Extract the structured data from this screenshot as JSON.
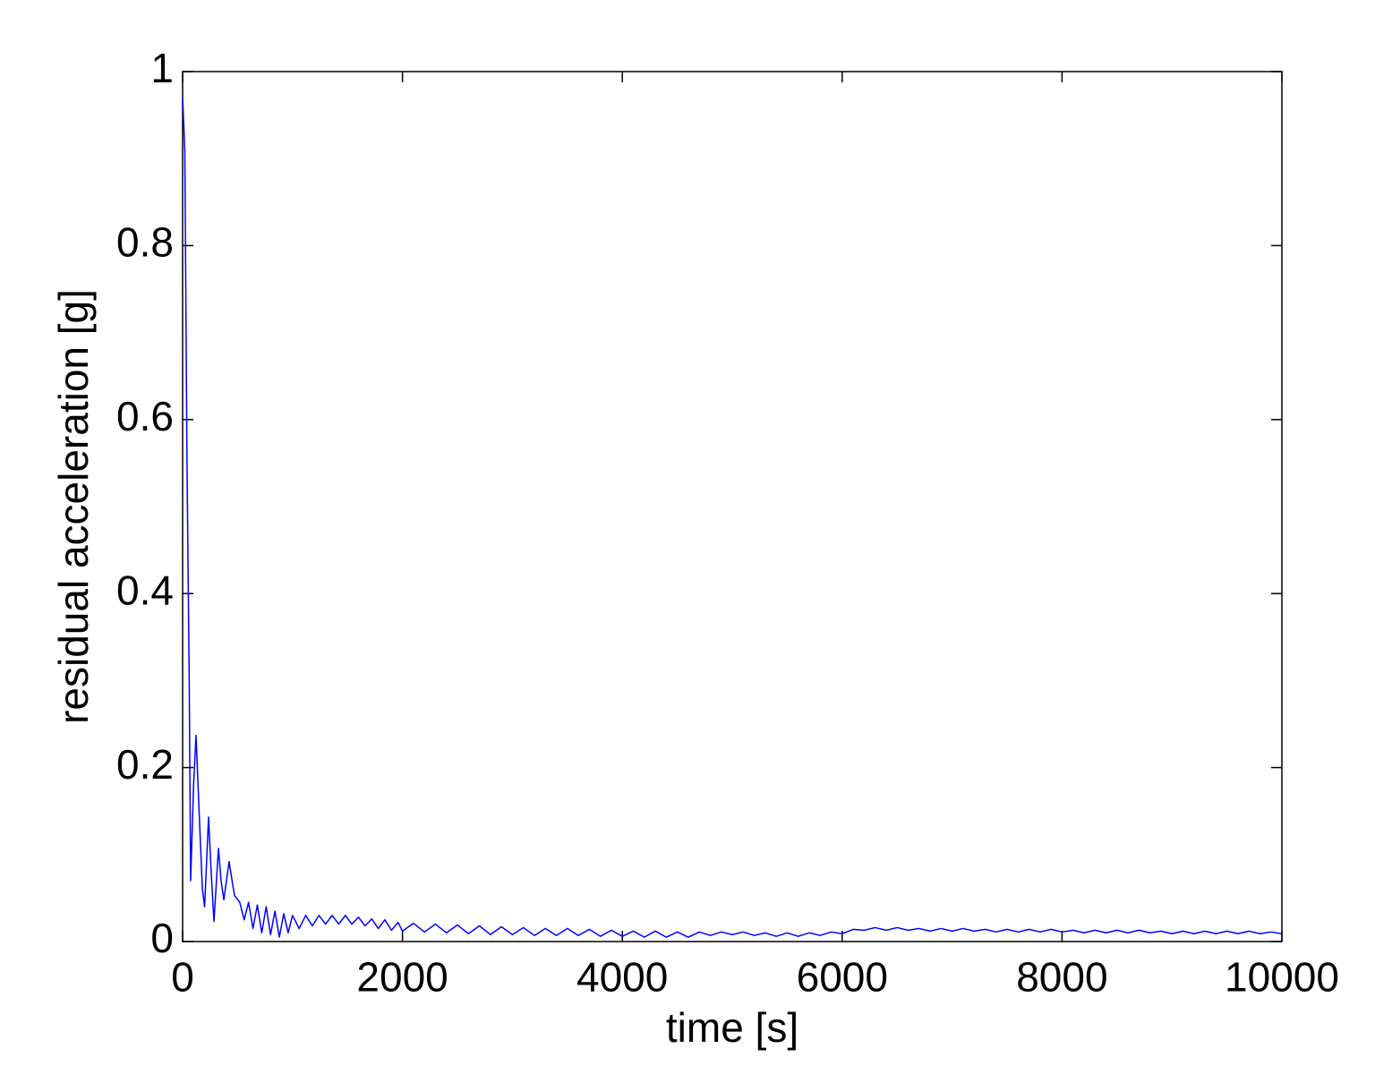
{
  "chart_data": {
    "type": "line",
    "xlabel": "time [s]",
    "ylabel": "residual acceleration [g]",
    "xlim": [
      0,
      10000
    ],
    "ylim": [
      0,
      1
    ],
    "xticks": [
      0,
      2000,
      4000,
      6000,
      8000,
      10000
    ],
    "yticks": [
      0,
      0.2,
      0.4,
      0.6,
      0.8,
      1
    ],
    "grid": false,
    "series": [
      {
        "color": "#0000ff",
        "x": [
          0,
          20,
          40,
          60,
          73,
          100,
          122,
          150,
          180,
          200,
          236,
          260,
          285,
          326,
          350,
          375,
          423,
          450,
          472,
          520,
          560,
          600,
          640,
          680,
          720,
          760,
          800,
          840,
          880,
          920,
          960,
          1000,
          1060,
          1120,
          1180,
          1240,
          1300,
          1360,
          1420,
          1480,
          1540,
          1600,
          1660,
          1720,
          1780,
          1840,
          1900,
          1960,
          2000,
          2100,
          2200,
          2300,
          2400,
          2500,
          2600,
          2700,
          2800,
          2900,
          3000,
          3100,
          3200,
          3300,
          3400,
          3500,
          3600,
          3700,
          3800,
          3900,
          4000,
          4100,
          4200,
          4300,
          4400,
          4500,
          4600,
          4700,
          4800,
          4900,
          5000,
          5100,
          5200,
          5300,
          5400,
          5500,
          5600,
          5700,
          5800,
          5900,
          6000,
          6100,
          6200,
          6300,
          6400,
          6500,
          6600,
          6700,
          6800,
          6900,
          7000,
          7100,
          7200,
          7300,
          7400,
          7500,
          7600,
          7700,
          7800,
          7900,
          8000,
          8100,
          8200,
          8300,
          8400,
          8500,
          8600,
          8700,
          8800,
          8900,
          9000,
          9100,
          9200,
          9300,
          9400,
          9500,
          9600,
          9700,
          9800,
          9900,
          10000
        ],
        "values": [
          0.97,
          0.91,
          0.55,
          0.3,
          0.07,
          0.18,
          0.237,
          0.15,
          0.06,
          0.04,
          0.143,
          0.08,
          0.023,
          0.107,
          0.07,
          0.048,
          0.092,
          0.07,
          0.053,
          0.045,
          0.025,
          0.045,
          0.015,
          0.042,
          0.01,
          0.04,
          0.008,
          0.035,
          0.005,
          0.032,
          0.01,
          0.03,
          0.015,
          0.03,
          0.018,
          0.03,
          0.02,
          0.03,
          0.02,
          0.03,
          0.02,
          0.028,
          0.018,
          0.026,
          0.015,
          0.025,
          0.013,
          0.022,
          0.012,
          0.021,
          0.011,
          0.02,
          0.01,
          0.019,
          0.009,
          0.018,
          0.008,
          0.017,
          0.008,
          0.016,
          0.007,
          0.015,
          0.007,
          0.015,
          0.007,
          0.014,
          0.006,
          0.013,
          0.006,
          0.012,
          0.005,
          0.012,
          0.005,
          0.011,
          0.005,
          0.011,
          0.007,
          0.011,
          0.008,
          0.011,
          0.007,
          0.01,
          0.006,
          0.01,
          0.006,
          0.01,
          0.007,
          0.011,
          0.009,
          0.014,
          0.013,
          0.016,
          0.013,
          0.016,
          0.013,
          0.015,
          0.012,
          0.015,
          0.012,
          0.015,
          0.012,
          0.014,
          0.011,
          0.014,
          0.011,
          0.014,
          0.011,
          0.014,
          0.011,
          0.013,
          0.01,
          0.013,
          0.01,
          0.013,
          0.01,
          0.013,
          0.01,
          0.012,
          0.009,
          0.012,
          0.009,
          0.012,
          0.009,
          0.012,
          0.009,
          0.012,
          0.009,
          0.011,
          0.009
        ]
      }
    ]
  }
}
